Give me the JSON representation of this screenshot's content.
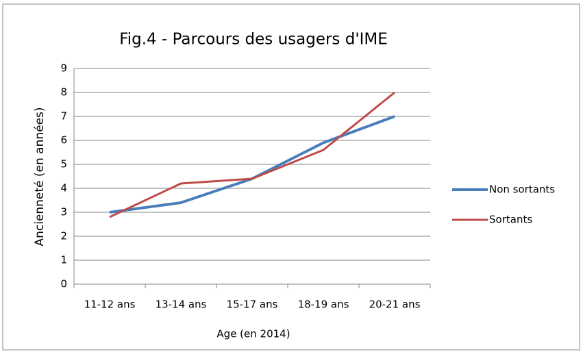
{
  "chart_data": {
    "type": "line",
    "title": "Fig.4 - Parcours des usagers d'IME",
    "x_label": "Age (en 2014)",
    "y_label": "Ancienneté (en années)",
    "categories": [
      "11-12 ans",
      "13-14 ans",
      "15-17 ans",
      "18-19 ans",
      "20-21 ans"
    ],
    "series": [
      {
        "name": "Non sortants",
        "color": "#4a7ebb",
        "values": [
          3.0,
          3.4,
          4.4,
          5.9,
          7.0
        ]
      },
      {
        "name": "Sortants",
        "color": "#be4b48",
        "values": [
          2.8,
          4.2,
          4.4,
          5.6,
          8.0
        ]
      }
    ],
    "ylim": [
      0,
      9
    ],
    "yticks": [
      0,
      1,
      2,
      3,
      4,
      5,
      6,
      7,
      8,
      9
    ],
    "grid": true,
    "legend": "right"
  }
}
